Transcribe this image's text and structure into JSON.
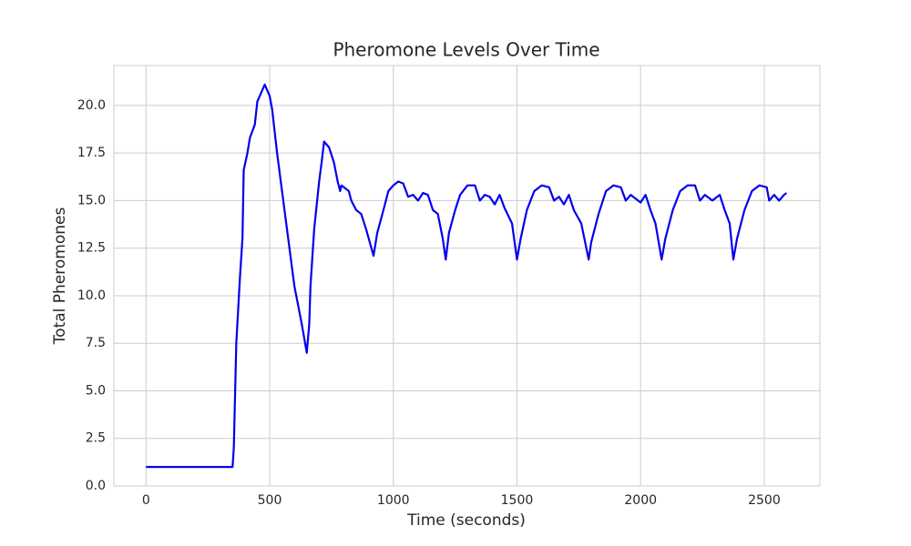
{
  "chart_data": {
    "type": "line",
    "title": "Pheromone Levels Over Time",
    "x_label": "Time (seconds)",
    "y_label": "Total Pheromones",
    "x": [
      0,
      100,
      200,
      300,
      350,
      355,
      365,
      380,
      390,
      395,
      410,
      420,
      440,
      450,
      460,
      470,
      480,
      490,
      500,
      510,
      530,
      560,
      600,
      630,
      650,
      660,
      665,
      680,
      700,
      710,
      720,
      740,
      760,
      775,
      785,
      790,
      800,
      820,
      830,
      850,
      870,
      890,
      905,
      920,
      935,
      960,
      980,
      1000,
      1020,
      1040,
      1060,
      1080,
      1100,
      1120,
      1140,
      1160,
      1180,
      1200,
      1212,
      1225,
      1250,
      1270,
      1300,
      1330,
      1350,
      1370,
      1390,
      1410,
      1430,
      1450,
      1480,
      1500,
      1515,
      1540,
      1570,
      1600,
      1630,
      1650,
      1670,
      1690,
      1710,
      1730,
      1760,
      1790,
      1800,
      1830,
      1860,
      1890,
      1920,
      1940,
      1960,
      1980,
      2000,
      2020,
      2040,
      2060,
      2085,
      2100,
      2130,
      2160,
      2190,
      2220,
      2240,
      2260,
      2290,
      2320,
      2340,
      2360,
      2375,
      2390,
      2420,
      2450,
      2480,
      2510,
      2520,
      2540,
      2560,
      2580,
      2590
    ],
    "series": [
      {
        "name": "Total Pheromones",
        "color": "#0000ee",
        "values": [
          1,
          1,
          1,
          1,
          1,
          2,
          7.5,
          11,
          13,
          16.6,
          17.5,
          18.3,
          19,
          20.2,
          20.5,
          20.8,
          21.1,
          20.8,
          20.5,
          19.8,
          17.5,
          14.5,
          10.5,
          8.5,
          7,
          8.5,
          10.5,
          13.5,
          16,
          17,
          18.1,
          17.8,
          17,
          16,
          15.5,
          15.8,
          15.7,
          15.5,
          15,
          14.5,
          14.3,
          13.5,
          12.8,
          12.1,
          13.3,
          14.5,
          15.5,
          15.8,
          16,
          15.9,
          15.2,
          15.3,
          15,
          15.4,
          15.3,
          14.5,
          14.3,
          13,
          11.9,
          13.3,
          14.5,
          15.3,
          15.8,
          15.8,
          15,
          15.3,
          15.2,
          14.8,
          15.3,
          14.6,
          13.8,
          11.9,
          13,
          14.5,
          15.5,
          15.8,
          15.7,
          15,
          15.2,
          14.8,
          15.3,
          14.5,
          13.8,
          11.9,
          12.8,
          14.3,
          15.5,
          15.8,
          15.7,
          15,
          15.3,
          15.1,
          14.9,
          15.3,
          14.5,
          13.8,
          11.9,
          13,
          14.5,
          15.5,
          15.8,
          15.8,
          15,
          15.3,
          15,
          15.3,
          14.5,
          13.8,
          11.9,
          13,
          14.5,
          15.5,
          15.8,
          15.7,
          15,
          15.3,
          15,
          15.3,
          15.4
        ]
      }
    ],
    "xlim": [
      -130,
      2725
    ],
    "ylim": [
      0,
      22.1
    ],
    "xticks": [
      0,
      500,
      1000,
      1500,
      2000,
      2500
    ],
    "yticks": [
      {
        "value": 0,
        "label": "0.0"
      },
      2.5,
      {
        "value": 5,
        "label": "5.0"
      },
      7.5,
      {
        "value": 10,
        "label": "10.0"
      },
      12.5,
      {
        "value": 15,
        "label": "15.0"
      },
      17.5,
      {
        "value": 20,
        "label": "20.0"
      }
    ],
    "grid": true
  }
}
